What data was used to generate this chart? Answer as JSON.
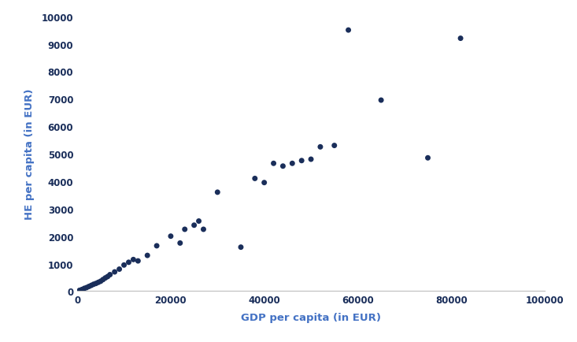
{
  "gdp": [
    500,
    1000,
    1500,
    2000,
    2500,
    3000,
    3500,
    4000,
    4500,
    5000,
    5500,
    6000,
    6500,
    7000,
    8000,
    9000,
    10000,
    11000,
    12000,
    13000,
    15000,
    17000,
    20000,
    22000,
    23000,
    25000,
    26000,
    27000,
    30000,
    35000,
    38000,
    40000,
    42000,
    44000,
    46000,
    48000,
    50000,
    52000,
    55000,
    58000,
    65000,
    75000,
    82000
  ],
  "he": [
    30,
    60,
    100,
    130,
    170,
    210,
    250,
    280,
    320,
    360,
    420,
    480,
    530,
    600,
    700,
    800,
    950,
    1050,
    1150,
    1100,
    1300,
    1650,
    2000,
    1750,
    2250,
    2400,
    2550,
    2250,
    3600,
    1600,
    4100,
    3950,
    4650,
    4550,
    4650,
    4750,
    4800,
    5250,
    5300,
    9500,
    6950,
    4850,
    9200
  ],
  "dot_color": "#1a2e5a",
  "dot_size": 25,
  "xlabel": "GDP per capita (in EUR)",
  "ylabel": "HE per capita (in EUR)",
  "xlim": [
    0,
    100000
  ],
  "ylim": [
    0,
    10000
  ],
  "xticks": [
    0,
    20000,
    40000,
    60000,
    80000,
    100000
  ],
  "yticks": [
    0,
    1000,
    2000,
    3000,
    4000,
    5000,
    6000,
    7000,
    8000,
    9000,
    10000
  ],
  "ytick_labels": [
    "0",
    "1000",
    "2000",
    "3000",
    "4000",
    "5000",
    "6000",
    "7000",
    "8000",
    "9000",
    "10000"
  ],
  "xtick_labels": [
    "0",
    "20000",
    "40000",
    "60000",
    "80000",
    "100000"
  ],
  "axis_color": "#c0c0c0",
  "label_color": "#4472c4",
  "tick_color": "#1a2e5a",
  "background_color": "#ffffff",
  "figsize": [
    7.33,
    4.35
  ],
  "dpi": 100
}
